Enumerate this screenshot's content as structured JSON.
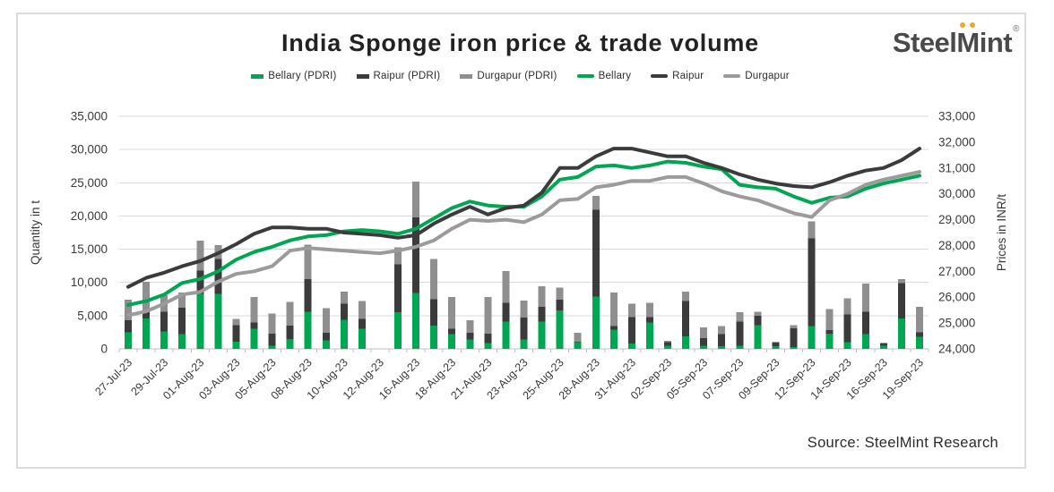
{
  "page": {
    "title": "India Sponge iron price & trade volume",
    "source": "Source: SteelMint Research"
  },
  "logo": {
    "steel": "Steel",
    "m": "M",
    "int": "int",
    "reg": "®"
  },
  "legend": [
    {
      "label": "Bellary (PDRI)",
      "type": "bar",
      "color": "#00A651"
    },
    {
      "label": "Raipur (PDRI)",
      "type": "bar",
      "color": "#3B3B3B"
    },
    {
      "label": "Durgapur (PDRI)",
      "type": "bar",
      "color": "#8F8F8F"
    },
    {
      "label": "Bellary",
      "type": "line",
      "color": "#00A651"
    },
    {
      "label": "Raipur",
      "type": "line",
      "color": "#3B3B3B"
    },
    {
      "label": "Durgapur",
      "type": "line",
      "color": "#9B9B9B"
    }
  ],
  "chart_data": {
    "type": "combo-stacked-bar-line",
    "slots": 45,
    "x_tick_every": 2,
    "tick_labels": [
      "27-Jul-23",
      "29-Jul-23",
      "01-Aug-23",
      "03-Aug-23",
      "05-Aug-23",
      "08-Aug-23",
      "10-Aug-23",
      "12-Aug-23",
      "16-Aug-23",
      "18-Aug-23",
      "21-Aug-23",
      "23-Aug-23",
      "25-Aug-23",
      "28-Aug-23",
      "31-Aug-23",
      "02-Sep-23",
      "05-Sep-23",
      "07-Sep-23",
      "09-Sep-23",
      "12-Sep-23",
      "14-Sep-23",
      "16-Sep-23",
      "19-Sep-23"
    ],
    "y_left": {
      "label": "Quantity in t",
      "min": 0,
      "max": 35000,
      "step": 5000,
      "ticks": [
        "0",
        "5,000",
        "10,000",
        "15,000",
        "20,000",
        "25,000",
        "30,000",
        "35,000"
      ]
    },
    "y_right": {
      "label": "Prices in INR/t",
      "min": 24000,
      "max": 33000,
      "step": 1000,
      "ticks": [
        "24,000",
        "25,000",
        "26,000",
        "27,000",
        "28,000",
        "29,000",
        "30,000",
        "31,000",
        "32,000",
        "33,000"
      ]
    },
    "grid": "horizontal",
    "gridline_color": "#d9d9d9",
    "axis_color": "#bfbfbf",
    "bars": [
      {
        "name": "Bellary (PDRI)",
        "color": "#00A651",
        "values": [
          2500,
          4600,
          2600,
          2200,
          8300,
          8300,
          1100,
          3000,
          500,
          1500,
          5600,
          1300,
          4400,
          3000,
          0,
          5500,
          8400,
          3500,
          2200,
          1400,
          900,
          4100,
          1400,
          4100,
          5800,
          1000,
          7900,
          2900,
          800,
          4000,
          500,
          1900,
          500,
          400,
          500,
          3600,
          400,
          300,
          3400,
          2300,
          1000,
          2200,
          500,
          4600,
          1800
        ]
      },
      {
        "name": "Raipur (PDRI)",
        "color": "#3B3B3B",
        "values": [
          1800,
          1200,
          3000,
          4000,
          3500,
          5200,
          2500,
          1000,
          1800,
          2000,
          4900,
          1100,
          2400,
          1500,
          0,
          7200,
          11400,
          4000,
          800,
          1000,
          1400,
          2800,
          3300,
          2200,
          1600,
          100,
          13000,
          500,
          4000,
          800,
          500,
          5300,
          1100,
          1800,
          3600,
          1400,
          600,
          2800,
          13200,
          500,
          4200,
          3400,
          400,
          5300,
          700
        ]
      },
      {
        "name": "Durgapur (PDRI)",
        "color": "#8F8F8F",
        "values": [
          3100,
          4300,
          2500,
          2300,
          4500,
          2100,
          900,
          3800,
          3000,
          3600,
          5200,
          3700,
          1800,
          2700,
          0,
          2600,
          5400,
          6000,
          4800,
          1900,
          5500,
          4800,
          2600,
          3100,
          1800,
          1300,
          2100,
          5100,
          2000,
          2100,
          200,
          1400,
          1600,
          1200,
          1400,
          600,
          0,
          500,
          2600,
          3200,
          2400,
          4200,
          0,
          600,
          3800
        ]
      }
    ],
    "lines": [
      {
        "name": "Bellary",
        "color": "#00A651",
        "values": [
          25700,
          25850,
          26100,
          26550,
          26700,
          27000,
          27450,
          27750,
          27950,
          28200,
          28350,
          28400,
          28550,
          28600,
          28550,
          28450,
          28650,
          29050,
          29450,
          29700,
          29550,
          29500,
          29500,
          29900,
          30550,
          30650,
          31050,
          31100,
          31000,
          31100,
          31250,
          31200,
          31050,
          30950,
          30350,
          30250,
          30200,
          29900,
          29650,
          29850,
          29900,
          30200,
          30400,
          30550,
          30700
        ]
      },
      {
        "name": "Raipur",
        "color": "#3B3B3B",
        "values": [
          26400,
          26750,
          26950,
          27200,
          27400,
          27700,
          28050,
          28450,
          28700,
          28700,
          28650,
          28650,
          28500,
          28450,
          28400,
          28300,
          28400,
          28850,
          29200,
          29500,
          29200,
          29450,
          29550,
          30050,
          31000,
          31000,
          31450,
          31750,
          31750,
          31600,
          31450,
          31450,
          31200,
          31000,
          30750,
          30550,
          30400,
          30300,
          30250,
          30450,
          30700,
          30900,
          31000,
          31300,
          31750
        ]
      },
      {
        "name": "Durgapur",
        "color": "#9B9B9B",
        "values": [
          25300,
          25450,
          25750,
          26100,
          26200,
          26600,
          26900,
          27000,
          27200,
          27800,
          27900,
          27850,
          27800,
          27750,
          27700,
          27800,
          27950,
          28200,
          28650,
          29000,
          28950,
          29000,
          28900,
          29200,
          29750,
          29800,
          30250,
          30350,
          30500,
          30500,
          30650,
          30650,
          30400,
          30100,
          29900,
          29750,
          29500,
          29250,
          29100,
          29750,
          30000,
          30350,
          30550,
          30700,
          30850
        ]
      }
    ]
  }
}
